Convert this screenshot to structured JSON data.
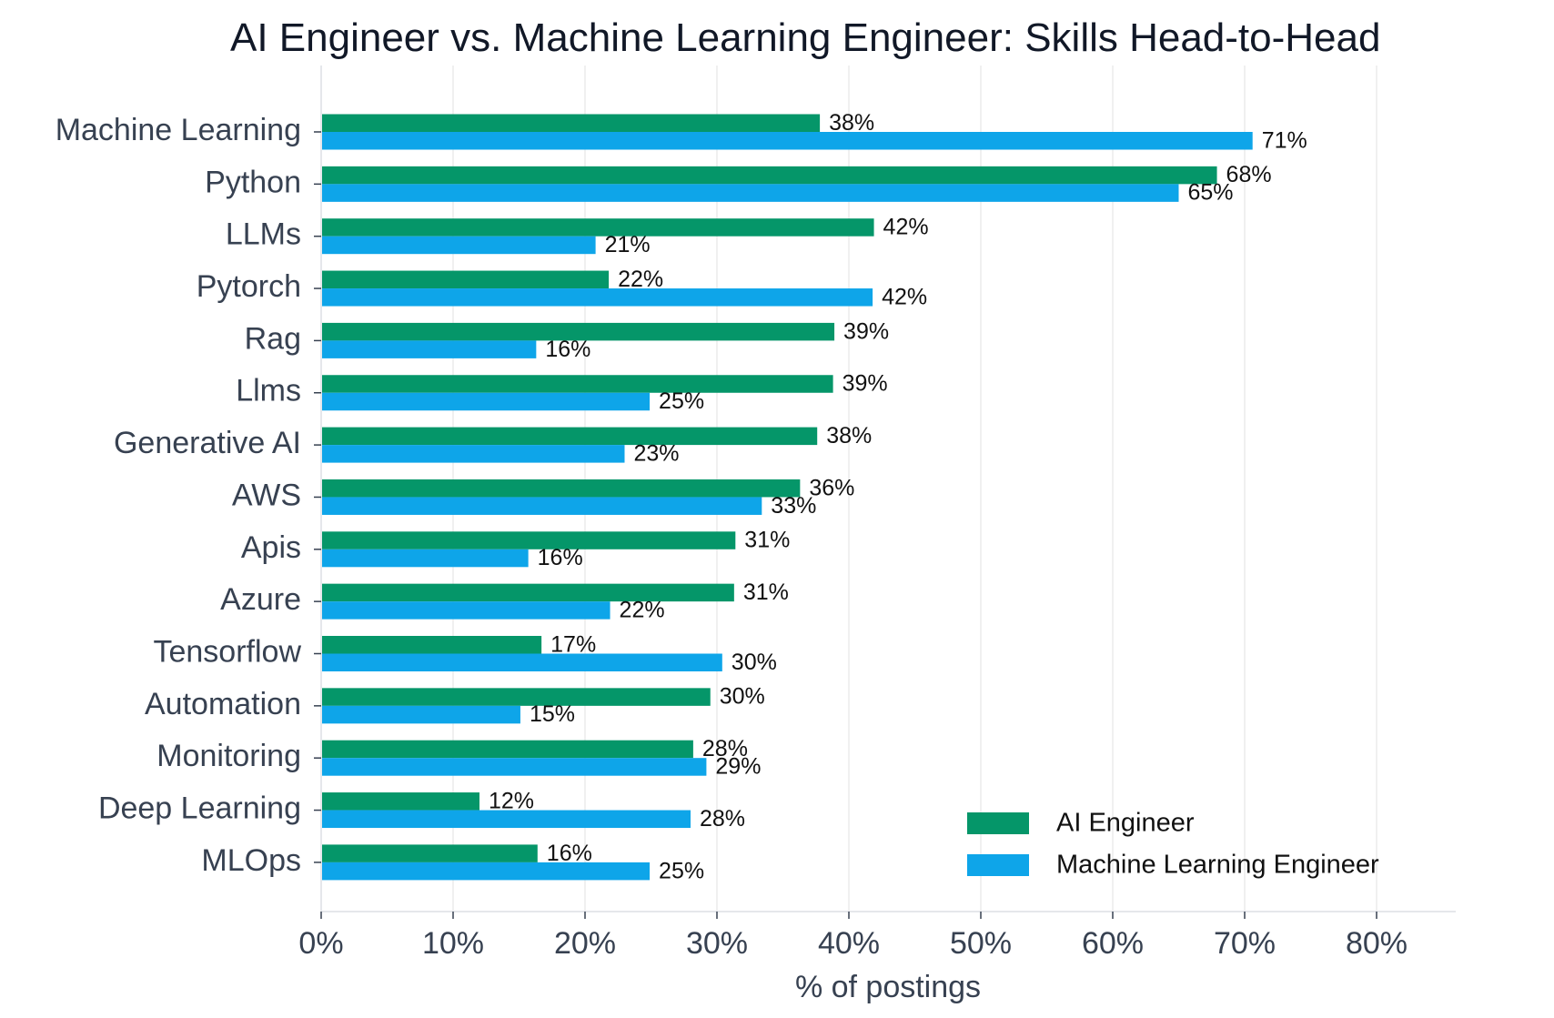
{
  "chart_data": {
    "type": "bar",
    "orientation": "horizontal",
    "title": "AI Engineer vs. Machine Learning Engineer: Skills Head-to-Head",
    "xlabel": "% of postings",
    "ylabel": "",
    "xlim": [
      0,
      86
    ],
    "x_ticks": [
      "0%",
      "10%",
      "20%",
      "30%",
      "40%",
      "50%",
      "60%",
      "70%",
      "80%"
    ],
    "x_tick_values": [
      0,
      10,
      20,
      30,
      40,
      50,
      60,
      70,
      80
    ],
    "grid": "vertical",
    "legend_position": "bottom-right",
    "categories": [
      "Machine Learning",
      "Python",
      "LLMs",
      "Pytorch",
      "Rag",
      "Llms",
      "Generative AI",
      "AWS",
      "Apis",
      "Azure",
      "Tensorflow",
      "Automation",
      "Monitoring",
      "Deep Learning",
      "MLOps"
    ],
    "series": [
      {
        "name": "AI Engineer",
        "color": "#059669",
        "values": [
          37.8,
          67.9,
          41.9,
          21.8,
          38.9,
          38.8,
          37.6,
          36.3,
          31.4,
          31.3,
          16.7,
          29.5,
          28.2,
          12.0,
          16.4
        ],
        "labels": [
          "38%",
          "68%",
          "42%",
          "22%",
          "39%",
          "39%",
          "38%",
          "36%",
          "31%",
          "31%",
          "17%",
          "30%",
          "28%",
          "12%",
          "16%"
        ]
      },
      {
        "name": "Machine Learning Engineer",
        "color": "#0ea5e9",
        "values": [
          70.6,
          65.0,
          20.8,
          41.8,
          16.3,
          24.9,
          23.0,
          33.4,
          15.7,
          21.9,
          30.4,
          15.1,
          29.2,
          28.0,
          24.9
        ],
        "labels": [
          "71%",
          "65%",
          "21%",
          "42%",
          "16%",
          "25%",
          "23%",
          "33%",
          "16%",
          "22%",
          "30%",
          "15%",
          "29%",
          "28%",
          "25%"
        ]
      }
    ]
  }
}
